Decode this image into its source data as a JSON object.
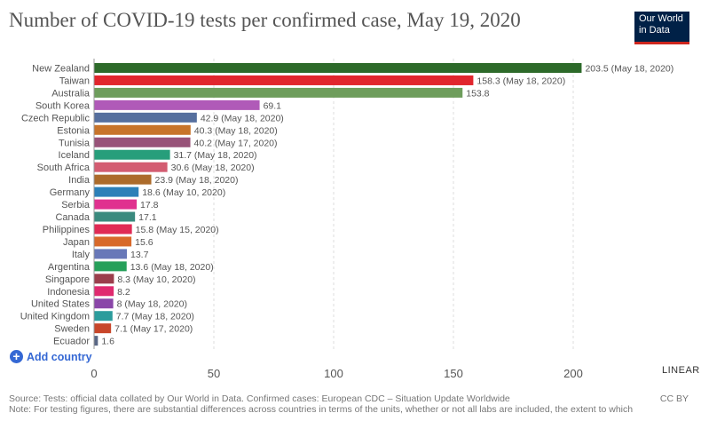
{
  "header": {
    "title": "Number of COVID-19 tests per confirmed case, May 19, 2020",
    "logo_line1": "Our World",
    "logo_line2": "in Data"
  },
  "controls": {
    "add_country_label": "Add country",
    "scale_label": "LINEAR"
  },
  "footer": {
    "source": "Source: Tests: official data collated by Our World in Data. Confirmed cases: European CDC – Situation Update Worldwide",
    "note": "Note: For testing figures, there are substantial differences across countries in terms of the units, whether or not all labs are included, the extent to which",
    "license": "CC BY"
  },
  "chart_data": {
    "type": "bar",
    "orientation": "horizontal",
    "title": "Number of COVID-19 tests per confirmed case, May 19, 2020",
    "xlim": [
      0,
      200
    ],
    "xticks": [
      0,
      50,
      100,
      150,
      200
    ],
    "grid": true,
    "categories": [
      "New Zealand",
      "Taiwan",
      "Australia",
      "South Korea",
      "Czech Republic",
      "Estonia",
      "Tunisia",
      "Iceland",
      "South Africa",
      "India",
      "Germany",
      "Serbia",
      "Canada",
      "Philippines",
      "Japan",
      "Italy",
      "Argentina",
      "Singapore",
      "Indonesia",
      "United States",
      "United Kingdom",
      "Sweden",
      "Ecuador"
    ],
    "values": [
      203.5,
      158.3,
      153.8,
      69.1,
      42.9,
      40.3,
      40.2,
      31.7,
      30.6,
      23.9,
      18.6,
      17.8,
      17.1,
      15.8,
      15.6,
      13.7,
      13.6,
      8.3,
      8.2,
      8,
      7.7,
      7.1,
      1.6
    ],
    "value_labels": [
      "203.5 (May 18, 2020)",
      "158.3 (May 18, 2020)",
      "153.8",
      "69.1",
      "42.9 (May 18, 2020)",
      "40.3 (May 18, 2020)",
      "40.2 (May 17, 2020)",
      "31.7 (May 18, 2020)",
      "30.6 (May 18, 2020)",
      "23.9 (May 18, 2020)",
      "18.6 (May 10, 2020)",
      "17.8",
      "17.1",
      "15.8 (May 15, 2020)",
      "15.6",
      "13.7",
      "13.6 (May 18, 2020)",
      "8.3 (May 10, 2020)",
      "8.2",
      "8 (May 18, 2020)",
      "7.7 (May 18, 2020)",
      "7.1 (May 17, 2020)",
      "1.6"
    ],
    "colors": [
      "#2d6a2a",
      "#e1262d",
      "#6e9d5c",
      "#b05ab8",
      "#566f9e",
      "#c8742a",
      "#985379",
      "#279e7b",
      "#d35c71",
      "#ac6b2a",
      "#2c80b8",
      "#e0318f",
      "#3a8a7e",
      "#e02a55",
      "#d8692a",
      "#6878b8",
      "#26a05a",
      "#9b3e4c",
      "#e02a6f",
      "#8a46a8",
      "#2c9c9c",
      "#c8462a",
      "#5a6785"
    ]
  }
}
